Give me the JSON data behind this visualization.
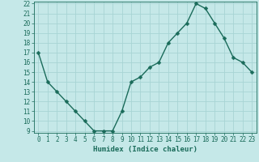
{
  "x": [
    0,
    1,
    2,
    3,
    4,
    5,
    6,
    7,
    8,
    9,
    10,
    11,
    12,
    13,
    14,
    15,
    16,
    17,
    18,
    19,
    20,
    21,
    22,
    23
  ],
  "y": [
    17,
    14,
    13,
    12,
    11,
    10,
    9,
    9,
    9,
    11,
    14,
    14.5,
    15.5,
    16,
    18,
    19,
    20,
    22,
    21.5,
    20,
    18.5,
    16.5,
    16,
    15
  ],
  "xlabel": "Humidex (Indice chaleur)",
  "ylim_min": 9,
  "ylim_max": 22,
  "xlim_min": 0,
  "xlim_max": 23,
  "yticks": [
    9,
    10,
    11,
    12,
    13,
    14,
    15,
    16,
    17,
    18,
    19,
    20,
    21,
    22
  ],
  "xtick_labels": [
    "0",
    "1",
    "2",
    "3",
    "4",
    "5",
    "6",
    "7",
    "8",
    "9",
    "10",
    "11",
    "12",
    "13",
    "14",
    "15",
    "16",
    "17",
    "18",
    "19",
    "20",
    "21",
    "22",
    "23"
  ],
  "bg_color": "#c5e8e8",
  "grid_color": "#a8d4d4",
  "line_color": "#1a6b5a",
  "marker_size": 2.5,
  "line_width": 1.0,
  "label_fontsize": 6.5,
  "tick_fontsize": 5.5
}
